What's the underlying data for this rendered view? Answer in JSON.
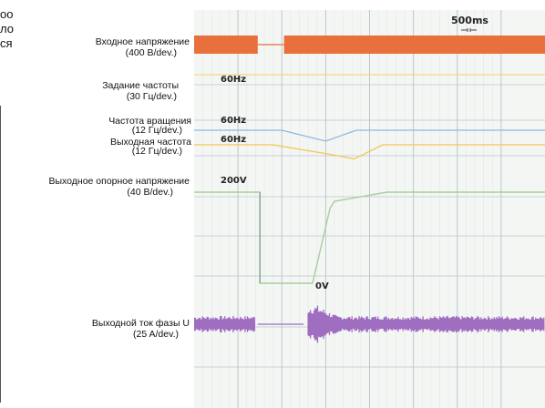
{
  "left_text_fragments": [
    "оо",
    "ло",
    "ся"
  ],
  "labels": {
    "input_voltage": {
      "name": "Входное напряжение",
      "scale": "(400 В/dev.)"
    },
    "freq_setting": {
      "name": "Задание частоты",
      "scale": "(30 Гц/dev.)"
    },
    "rot_speed": {
      "name": "Частота вращения",
      "scale": "(12 Гц/dev.)"
    },
    "out_freq": {
      "name": "Выходная частота",
      "scale": "(12 Гц/dev.)"
    },
    "ref_voltage": {
      "name": "Выходное опорное напряжение",
      "scale": "(40 В/dev.)"
    },
    "phase_current": {
      "name": "Выходной ток фазы U",
      "scale": "(25 A/dev.)"
    }
  },
  "trace_values": {
    "freq_setting": "60Hz",
    "rot_speed": "60Hz",
    "out_freq": "60Hz",
    "ref_voltage": "200V",
    "ref_voltage_zero": "0V"
  },
  "timebase": "500ms",
  "colors": {
    "input_voltage": "#e8703c",
    "freq_setting": "#f2d985",
    "rot_speed": "#8fb8e0",
    "out_freq": "#f0c850",
    "ref_voltage": "#a6cf9a",
    "phase_current": "#9f6ec0",
    "grid": "#b9c7d1",
    "background": "#f4f6f4"
  },
  "chart_data": {
    "type": "line",
    "x_divisions": 8,
    "traces": [
      {
        "name": "Входное напряжение",
        "scale": "(400 В/dev.)",
        "x_time_div": [
          0,
          1.45,
          1.45,
          2.05,
          2.05,
          8
        ],
        "amplitude": [
          1,
          1,
          0,
          0,
          1,
          1
        ]
      },
      {
        "name": "Задание частоты",
        "scale": "(30 Гц/dev.)",
        "x_time_div": [
          0,
          8
        ],
        "value_hz": [
          60,
          60
        ]
      },
      {
        "name": "Частота вращения",
        "scale": "(12 Гц/dev.)",
        "x_time_div": [
          0,
          2.0,
          3.0,
          3.7,
          8
        ],
        "value_hz": [
          60,
          60,
          50,
          60,
          60
        ]
      },
      {
        "name": "Выходная частота",
        "scale": "(12 Гц/dev.)",
        "x_time_div": [
          0,
          1.8,
          3.1,
          3.65,
          4.3,
          8
        ],
        "value_hz": [
          60,
          60,
          55.8,
          53.8,
          60,
          60
        ]
      },
      {
        "name": "Выходное опорное напряжение",
        "scale": "(40 В/dev.)",
        "x_time_div": [
          0,
          1.5,
          1.5,
          2.7,
          3.1,
          3.2,
          4.4,
          8
        ],
        "value_v": [
          200,
          200,
          0,
          0,
          165,
          180,
          200,
          200
        ]
      },
      {
        "name": "Выходной ток фазы U",
        "scale": "(25 A/dev.)",
        "x_time_div": [
          0,
          1.4,
          1.45,
          2.2,
          2.5,
          2.6,
          8
        ],
        "amplitude": [
          0.3,
          0.3,
          0,
          0,
          0,
          1,
          0.3
        ]
      }
    ]
  }
}
